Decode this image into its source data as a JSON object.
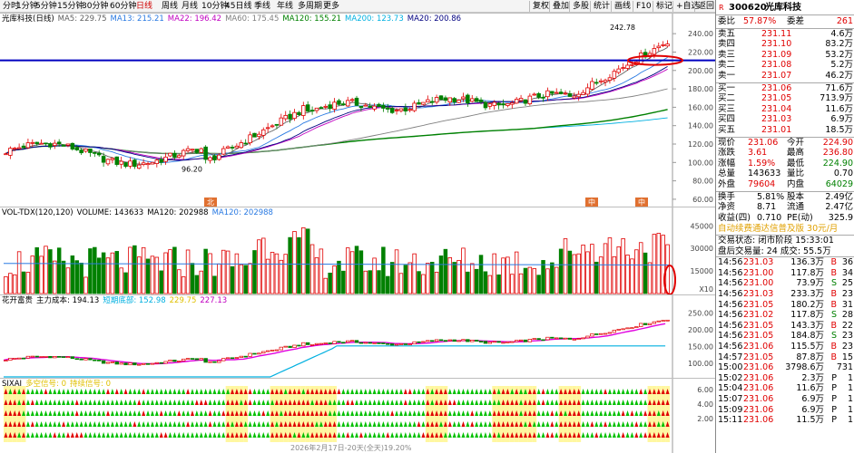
{
  "toolbar": {
    "periods": [
      {
        "label": "分时",
        "active": false
      },
      {
        "label": "1分钟",
        "active": false
      },
      {
        "label": "5分钟",
        "active": false
      },
      {
        "label": "15分钟",
        "active": false
      },
      {
        "label": "30分钟",
        "active": false
      },
      {
        "label": "60分钟",
        "active": false
      },
      {
        "label": "日线",
        "active": true
      },
      {
        "label": "周线",
        "active": false
      },
      {
        "label": "月线",
        "active": false
      },
      {
        "label": "10分钟",
        "active": false
      },
      {
        "label": "45日线",
        "active": false
      },
      {
        "label": "季线",
        "active": false
      },
      {
        "label": "年线",
        "active": false
      },
      {
        "label": "多周期",
        "active": false
      },
      {
        "label": "更多",
        "active": false
      }
    ],
    "right": [
      "复权",
      "叠加",
      "多股",
      "统计",
      "画线",
      "F10",
      "标记",
      "+自选",
      "返回"
    ]
  },
  "main_chart": {
    "legend": [
      {
        "text": "光库科技(日线)",
        "color": "#000000"
      },
      {
        "text": "MA5: 229.75",
        "color": "#606060"
      },
      {
        "text": "MA13: 215.21",
        "color": "#2a7ae2"
      },
      {
        "text": "MA22: 196.42",
        "color": "#c000c0"
      },
      {
        "text": "MA60: 175.45",
        "color": "#808080"
      },
      {
        "text": "MA120: 155.21",
        "color": "#008000"
      },
      {
        "text": "MA200: 123.73",
        "color": "#00b0e0"
      },
      {
        "text": "MA20: 200.86",
        "color": "#000080"
      }
    ],
    "y_ticks": [
      "240.00",
      "220.00",
      "200.00",
      "180.00",
      "160.00",
      "140.00",
      "120.00",
      "100.00",
      "80.00",
      "60.00"
    ],
    "y_range": [
      55,
      250
    ],
    "annotations": {
      "high": "242.78",
      "low": "96.20"
    },
    "hline_value": 211,
    "markers": [
      "北",
      "中",
      "中"
    ]
  },
  "volume_chart": {
    "legend": [
      {
        "text": "VOL-TDX(120,120)",
        "color": "#000000"
      },
      {
        "text": "VOLUME: 143633",
        "color": "#000000"
      },
      {
        "text": "MA120: 202988",
        "color": "#000000"
      },
      {
        "text": "MA120: 202988",
        "color": "#2a7ae2"
      }
    ],
    "y_ticks": [
      "45000",
      "30000",
      "15000",
      "X10"
    ],
    "y_range": [
      0,
      50000
    ]
  },
  "cost_chart": {
    "legend": [
      {
        "text": "花开富贵",
        "color": "#000000"
      },
      {
        "text": "主力成本: 194.13",
        "color": "#000000"
      },
      {
        "text": "短期底部: 152.98",
        "color": "#00b0e0"
      },
      {
        "text": "229.75",
        "color": "#e0c000"
      },
      {
        "text": "227.13",
        "color": "#c000c0"
      }
    ],
    "y_ticks": [
      "250.00",
      "200.00",
      "150.00",
      "100.00"
    ],
    "y_range": [
      60,
      270
    ]
  },
  "signal_chart": {
    "legend": [
      {
        "text": "SIXAI",
        "color": "#000000"
      },
      {
        "text": "多空信号: 0",
        "color": "#e0c000"
      },
      {
        "text": "持续信号: 0",
        "color": "#e0c000"
      }
    ],
    "y_ticks": [
      "6.00",
      "4.00",
      "2.00"
    ],
    "footer": "2026年2月17日-20天(全天)19.20%"
  },
  "quote": {
    "code": "300620",
    "name": "光库科技",
    "weibi": {
      "label": "委比",
      "value": "57.87%",
      "label2": "委差",
      "value2": "261"
    },
    "asks": [
      {
        "label": "卖五",
        "price": "231.11",
        "vol": "4.6万"
      },
      {
        "label": "卖四",
        "price": "231.10",
        "vol": "83.2万"
      },
      {
        "label": "卖三",
        "price": "231.09",
        "vol": "53.2万"
      },
      {
        "label": "卖二",
        "price": "231.08",
        "vol": "5.2万"
      },
      {
        "label": "卖一",
        "price": "231.07",
        "vol": "46.2万"
      }
    ],
    "bids": [
      {
        "label": "买一",
        "price": "231.06",
        "vol": "71.6万"
      },
      {
        "label": "买二",
        "price": "231.05",
        "vol": "713.9万"
      },
      {
        "label": "买三",
        "price": "231.04",
        "vol": "11.6万"
      },
      {
        "label": "买四",
        "price": "231.03",
        "vol": "6.9万"
      },
      {
        "label": "买五",
        "price": "231.01",
        "vol": "18.5万"
      }
    ],
    "stats": [
      {
        "l1": "现价",
        "v1": "231.06",
        "c1": "red",
        "l2": "今开",
        "v2": "224.90",
        "c2": "red"
      },
      {
        "l1": "涨跌",
        "v1": "3.61",
        "c1": "red",
        "l2": "最高",
        "v2": "236.80",
        "c2": "red"
      },
      {
        "l1": "涨幅",
        "v1": "1.59%",
        "c1": "red",
        "l2": "最低",
        "v2": "224.90",
        "c2": "green"
      },
      {
        "l1": "总量",
        "v1": "143633",
        "c1": "black",
        "l2": "量比",
        "v2": "0.70",
        "c2": "black"
      },
      {
        "l1": "外盘",
        "v1": "79604",
        "c1": "red",
        "l2": "内盘",
        "v2": "64029",
        "c2": "green"
      }
    ],
    "fin": [
      {
        "l1": "换手",
        "v1": "5.81%",
        "l2": "股本",
        "v2": "2.49亿"
      },
      {
        "l1": "净资",
        "v1": "8.71",
        "l2": "流通",
        "v2": "2.47亿"
      },
      {
        "l1": "收益(四)",
        "v1": "0.710",
        "l2": "PE(动)",
        "v2": "325.9"
      }
    ],
    "ad": "自动续费通达信普及版 30元/月",
    "status": "交易状态: 闭市阶段 15:33:01",
    "after": "盘后交易量: 24  成交: 55.5万",
    "trades": [
      {
        "t": "14:56",
        "p": "231.03",
        "v": "136.3万",
        "bs": "B",
        "n": "36"
      },
      {
        "t": "14:56",
        "p": "231.00",
        "v": "117.8万",
        "bs": "B",
        "n": "34"
      },
      {
        "t": "14:56",
        "p": "231.00",
        "v": "73.9万",
        "bs": "S",
        "n": "25"
      },
      {
        "t": "14:56",
        "p": "231.03",
        "v": "233.3万",
        "bs": "B",
        "n": "23"
      },
      {
        "t": "14:56",
        "p": "231.05",
        "v": "180.2万",
        "bs": "B",
        "n": "31"
      },
      {
        "t": "14:56",
        "p": "231.02",
        "v": "117.8万",
        "bs": "S",
        "n": "28"
      },
      {
        "t": "14:56",
        "p": "231.05",
        "v": "143.3万",
        "bs": "B",
        "n": "22"
      },
      {
        "t": "14:56",
        "p": "231.05",
        "v": "184.8万",
        "bs": "S",
        "n": "23"
      },
      {
        "t": "14:56",
        "p": "231.06",
        "v": "115.5万",
        "bs": "B",
        "n": "23"
      },
      {
        "t": "14:57",
        "p": "231.05",
        "v": "87.8万",
        "bs": "B",
        "n": "15"
      },
      {
        "t": "15:00",
        "p": "231.06",
        "v": "3798.6万",
        "bs": "",
        "n": "731"
      },
      {
        "t": "15:02",
        "p": "231.06",
        "v": "2.3万",
        "bs": "P",
        "n": "1"
      },
      {
        "t": "15:04",
        "p": "231.06",
        "v": "11.6万",
        "bs": "P",
        "n": "1"
      },
      {
        "t": "15:07",
        "p": "231.06",
        "v": "6.9万",
        "bs": "P",
        "n": "1"
      },
      {
        "t": "15:09",
        "p": "231.06",
        "v": "6.9万",
        "bs": "P",
        "n": "1"
      },
      {
        "t": "15:11",
        "p": "231.06",
        "v": "11.5万",
        "bs": "P",
        "n": "1"
      }
    ]
  },
  "colors": {
    "up": "#e00000",
    "down": "#008000",
    "hline": "#0000c0",
    "circle": "#e00000"
  }
}
